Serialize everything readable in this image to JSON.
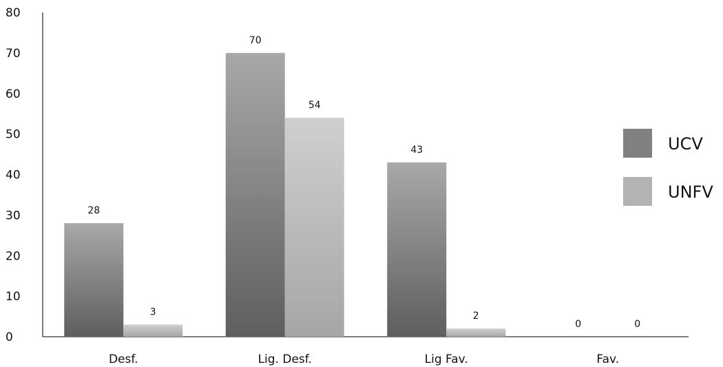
{
  "chart_data": {
    "type": "bar",
    "categories": [
      "Desf.",
      "Lig. Desf.",
      "Lig Fav.",
      "Fav."
    ],
    "series": [
      {
        "name": "UCV",
        "values": [
          28,
          70,
          43,
          0
        ],
        "color": "#808080"
      },
      {
        "name": "UNFV",
        "values": [
          3,
          54,
          2,
          0
        ],
        "color": "#b3b3b3"
      }
    ],
    "ylim": [
      0,
      80
    ],
    "yticks": [
      0,
      10,
      20,
      30,
      40,
      50,
      60,
      70,
      80
    ],
    "grid": false,
    "legend_position": "right",
    "data_labels": true
  }
}
